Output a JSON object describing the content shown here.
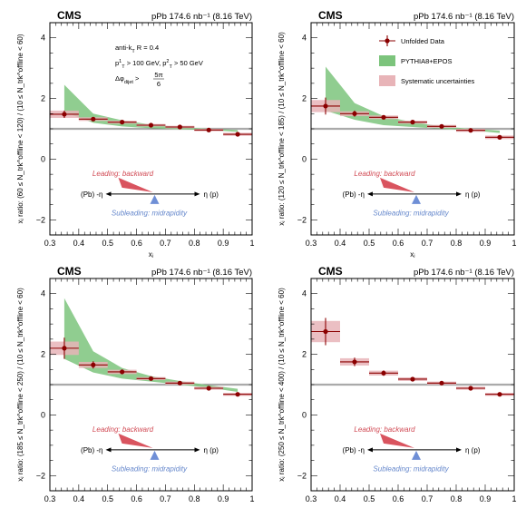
{
  "colors": {
    "data": "#8b0000",
    "model_band": "#7cc47c",
    "syst_band": "#e8b4b8",
    "leading": "#d9545f",
    "subleading": "#6f8fd6",
    "unity_band": "#c8c8c8"
  },
  "legend": {
    "data": "Unfolded Data",
    "model": "PYTHIA8+EPOS",
    "syst": "Systematic uncertainties"
  },
  "diagram": {
    "leading": "Leading: backward",
    "subleading": "Subleading: midrapidity",
    "eta_left": "(Pb) -η",
    "eta_right": "η (p)"
  },
  "jet_info": {
    "algo": "anti-k",
    "algo_sub": "T",
    "radius": " R = 0.4",
    "pt1_a": "p",
    "pt1_sup": "1",
    "pt1_sub": "T",
    "pt1_cut": " > 100 GeV, ",
    "pt2_a": "p",
    "pt2_sup": "2",
    "pt2_sub": "T",
    "pt2_cut": " > 50 GeV",
    "dphi": "Δφ",
    "dphi_sub": "dijet",
    "dphi_gt": " > ",
    "dphi_num": "5π",
    "dphi_den": "6"
  },
  "chart_data": [
    {
      "type": "scatter",
      "panel": "top-left",
      "experiment": "CMS",
      "lumi": "pPb 174.6 nb⁻¹ (8.16 TeV)",
      "xlabel": "xⱼ",
      "ylabel": "xⱼ ratio: (60 ≤ N_trk^offline < 120) / (10 ≤ N_trk^offline < 60)",
      "xlim": [
        0.3,
        1.0
      ],
      "ylim": [
        -2.5,
        4.5
      ],
      "xticks": [
        "0.3",
        "0.4",
        "0.5",
        "0.6",
        "0.7",
        "0.8",
        "0.9",
        "1"
      ],
      "yticks": [
        "−2",
        "0",
        "2",
        "4"
      ],
      "x": [
        0.35,
        0.45,
        0.55,
        0.65,
        0.75,
        0.85,
        0.95
      ],
      "y": [
        1.48,
        1.32,
        1.22,
        1.12,
        1.06,
        0.96,
        0.82
      ],
      "yerr": [
        0.12,
        0.06,
        0.05,
        0.04,
        0.04,
        0.04,
        0.04
      ],
      "syst": [
        0.12,
        0.06,
        0.05,
        0.04,
        0.04,
        0.04,
        0.05
      ],
      "model_x": [
        0.35,
        0.45,
        0.55,
        0.65,
        0.75,
        0.85,
        0.95
      ],
      "model_lo": [
        1.55,
        1.2,
        1.08,
        1.02,
        0.98,
        0.96,
        0.9
      ],
      "model_hi": [
        2.45,
        1.5,
        1.28,
        1.14,
        1.06,
        1.0,
        0.96
      ],
      "show_info": true,
      "show_legend": false
    },
    {
      "type": "scatter",
      "panel": "top-right",
      "experiment": "CMS",
      "lumi": "pPb 174.6 nb⁻¹ (8.16 TeV)",
      "xlabel": "xⱼ",
      "ylabel": "xⱼ ratio: (120 ≤ N_trk^offline < 185) / (10 ≤ N_trk^offline < 60)",
      "xlim": [
        0.3,
        1.0
      ],
      "ylim": [
        -2.5,
        4.5
      ],
      "xticks": [
        "0.3",
        "0.4",
        "0.5",
        "0.6",
        "0.7",
        "0.8",
        "0.9",
        "1"
      ],
      "yticks": [
        "−2",
        "0",
        "2",
        "4"
      ],
      "x": [
        0.35,
        0.45,
        0.55,
        0.65,
        0.75,
        0.85,
        0.95
      ],
      "y": [
        1.75,
        1.5,
        1.38,
        1.22,
        1.08,
        0.95,
        0.72
      ],
      "yerr": [
        0.28,
        0.1,
        0.07,
        0.06,
        0.05,
        0.05,
        0.05
      ],
      "syst": [
        0.2,
        0.08,
        0.06,
        0.05,
        0.05,
        0.05,
        0.06
      ],
      "model_x": [
        0.35,
        0.45,
        0.55,
        0.65,
        0.75,
        0.85,
        0.95
      ],
      "model_lo": [
        1.6,
        1.3,
        1.12,
        1.06,
        1.0,
        0.95,
        0.86
      ],
      "model_hi": [
        3.05,
        1.85,
        1.42,
        1.22,
        1.08,
        1.0,
        0.94
      ],
      "show_info": false,
      "show_legend": true
    },
    {
      "type": "scatter",
      "panel": "bottom-left",
      "experiment": "CMS",
      "lumi": "pPb 174.6 nb⁻¹ (8.16 TeV)",
      "xlabel": "xⱼ",
      "ylabel": "xⱼ ratio: (185 ≤ N_trk^offline < 250) / (10 ≤ N_trk^offline < 60)",
      "xlim": [
        0.3,
        1.0
      ],
      "ylim": [
        -2.5,
        4.5
      ],
      "xticks": [
        "0.3",
        "0.4",
        "0.5",
        "0.6",
        "0.7",
        "0.8",
        "0.9",
        "1"
      ],
      "yticks": [
        "−2",
        "0",
        "2",
        "4"
      ],
      "x": [
        0.35,
        0.45,
        0.55,
        0.65,
        0.75,
        0.85,
        0.95
      ],
      "y": [
        2.2,
        1.65,
        1.42,
        1.2,
        1.05,
        0.88,
        0.68
      ],
      "yerr": [
        0.35,
        0.12,
        0.08,
        0.06,
        0.05,
        0.05,
        0.05
      ],
      "syst": [
        0.22,
        0.1,
        0.07,
        0.05,
        0.05,
        0.05,
        0.05
      ],
      "model_x": [
        0.35,
        0.45,
        0.55,
        0.65,
        0.75,
        0.85,
        0.95
      ],
      "model_lo": [
        1.85,
        1.4,
        1.2,
        1.1,
        1.0,
        0.9,
        0.76
      ],
      "model_hi": [
        3.85,
        2.1,
        1.55,
        1.28,
        1.12,
        0.98,
        0.86
      ],
      "show_info": false,
      "show_legend": false
    },
    {
      "type": "scatter",
      "panel": "bottom-right",
      "experiment": "CMS",
      "lumi": "pPb 174.6 nb⁻¹ (8.16 TeV)",
      "xlabel": "xⱼ",
      "ylabel": "xⱼ ratio: (250 ≤ N_trk^offline < 400) / (10 ≤ N_trk^offline < 60)",
      "xlim": [
        0.3,
        1.0
      ],
      "ylim": [
        -2.5,
        4.5
      ],
      "xticks": [
        "0.3",
        "0.4",
        "0.5",
        "0.6",
        "0.7",
        "0.8",
        "0.9",
        "1"
      ],
      "yticks": [
        "−2",
        "0",
        "2",
        "4"
      ],
      "x": [
        0.35,
        0.45,
        0.55,
        0.65,
        0.75,
        0.85,
        0.95
      ],
      "y": [
        2.75,
        1.75,
        1.38,
        1.18,
        1.05,
        0.88,
        0.68
      ],
      "yerr": [
        0.45,
        0.14,
        0.09,
        0.07,
        0.06,
        0.05,
        0.05
      ],
      "syst": [
        0.35,
        0.12,
        0.08,
        0.06,
        0.05,
        0.05,
        0.05
      ],
      "model_x": [],
      "model_lo": [],
      "model_hi": [],
      "show_info": false,
      "show_legend": false
    }
  ]
}
